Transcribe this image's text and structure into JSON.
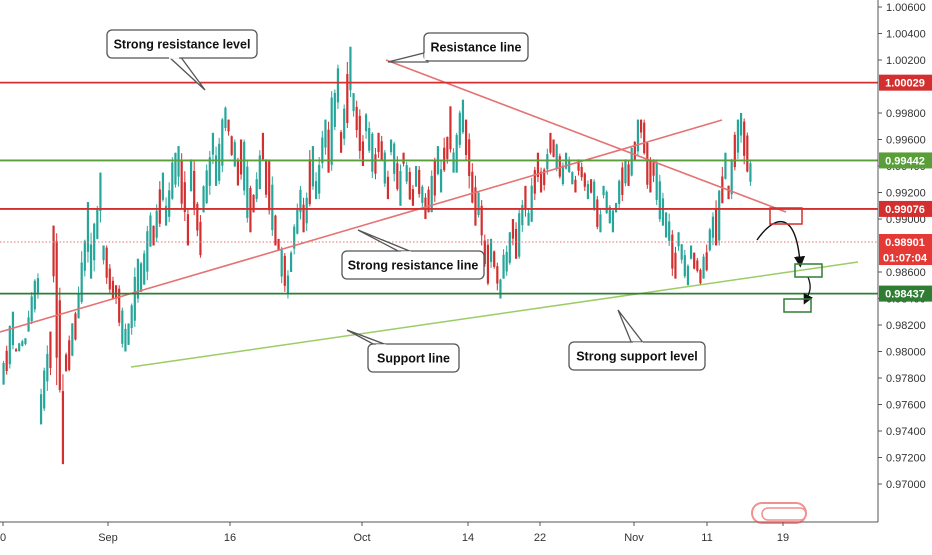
{
  "chart_data": {
    "type": "candlestick",
    "x_axis": {
      "tick_labels": [
        "0",
        "Sep",
        "16",
        "Oct",
        "14",
        "22",
        "Nov",
        "11",
        "19"
      ]
    },
    "y_axis": {
      "position": "right",
      "range": [
        0.969,
        1.0065
      ],
      "tick_labels": [
        "1.00600",
        "1.00400",
        "1.00200",
        "0.99800",
        "0.99600",
        "0.99400",
        "0.99200",
        "0.99000",
        "0.98600",
        "0.98400",
        "0.98200",
        "0.98000",
        "0.97800",
        "0.97600",
        "0.97400",
        "0.97200",
        "0.97000"
      ],
      "tick_values": [
        1.006,
        1.004,
        1.002,
        0.998,
        0.996,
        0.994,
        0.992,
        0.99,
        0.986,
        0.984,
        0.982,
        0.98,
        0.978,
        0.976,
        0.974,
        0.972,
        0.97
      ]
    },
    "horizontal_levels": [
      {
        "price": 1.00029,
        "label": "1.00029",
        "color": "#d32f2f"
      },
      {
        "price": 0.99442,
        "label": "0.99442",
        "color": "#5a9e3a"
      },
      {
        "price": 0.99076,
        "label": "0.99076",
        "color": "#d32f2f"
      },
      {
        "price": 0.98437,
        "label": "0.98437",
        "color": "#2e7d32"
      }
    ],
    "current_price": {
      "label": "0.98901",
      "countdown": "01:07:04",
      "color": "#e53935"
    },
    "annotations": {
      "strong_resistance_level": "Strong resistance level",
      "resistance_line": "Resistance line",
      "strong_resistance_line": "Strong resistance line",
      "support_line": "Support line",
      "strong_support_level": "Strong support level"
    },
    "price_path": [
      [
        0.983,
        0.9775,
        1
      ],
      [
        0.981,
        0.98,
        1
      ],
      [
        0.986,
        0.9815,
        1
      ],
      [
        0.9815,
        0.9745,
        1
      ],
      [
        0.9895,
        0.9715,
        -1
      ],
      [
        0.983,
        0.9785,
        1
      ],
      [
        0.9915,
        0.9825,
        1
      ],
      [
        0.9935,
        0.9855,
        1
      ],
      [
        0.988,
        0.984,
        -1
      ],
      [
        0.985,
        0.98,
        -1
      ],
      [
        0.987,
        0.9805,
        1
      ],
      [
        0.9905,
        0.9845,
        1
      ],
      [
        0.9935,
        0.988,
        1
      ],
      [
        0.995,
        0.9895,
        1
      ],
      [
        0.9955,
        0.988,
        -1
      ],
      [
        0.9945,
        0.987,
        -1
      ],
      [
        0.9965,
        0.9905,
        1
      ],
      [
        0.9985,
        0.9925,
        1
      ],
      [
        0.9975,
        0.9925,
        -1
      ],
      [
        0.996,
        0.989,
        -1
      ],
      [
        0.9965,
        0.9905,
        1
      ],
      [
        0.9945,
        0.988,
        -1
      ],
      [
        0.9885,
        0.984,
        -1
      ],
      [
        0.9925,
        0.986,
        1
      ],
      [
        0.9955,
        0.989,
        1
      ],
      [
        0.9975,
        0.9915,
        1
      ],
      [
        1.002,
        0.9935,
        1
      ],
      [
        1.003,
        0.995,
        1
      ],
      [
        0.9995,
        0.994,
        -1
      ],
      [
        0.998,
        0.993,
        -1
      ],
      [
        0.9965,
        0.9915,
        -1
      ],
      [
        0.996,
        0.991,
        -1
      ],
      [
        0.995,
        0.991,
        -1
      ],
      [
        0.994,
        0.99,
        -1
      ],
      [
        0.9955,
        0.9905,
        1
      ],
      [
        0.9985,
        0.992,
        1
      ],
      [
        0.999,
        0.9935,
        1
      ],
      [
        0.9975,
        0.9895,
        -1
      ],
      [
        0.992,
        0.985,
        -1
      ],
      [
        0.9885,
        0.984,
        -1
      ],
      [
        0.99,
        0.9855,
        1
      ],
      [
        0.9925,
        0.987,
        1
      ],
      [
        0.995,
        0.9895,
        1
      ],
      [
        0.9965,
        0.992,
        1
      ],
      [
        0.996,
        0.9925,
        -1
      ],
      [
        0.995,
        0.992,
        -1
      ],
      [
        0.9945,
        0.9915,
        -1
      ],
      [
        0.993,
        0.989,
        -1
      ],
      [
        0.9925,
        0.989,
        -1
      ],
      [
        0.9945,
        0.9905,
        1
      ],
      [
        0.9975,
        0.9925,
        1
      ],
      [
        0.9975,
        0.992,
        -1
      ],
      [
        0.9945,
        0.9895,
        -1
      ],
      [
        0.9905,
        0.9855,
        -1
      ],
      [
        0.989,
        0.985,
        -1
      ],
      [
        0.988,
        0.985,
        -1
      ],
      [
        0.9905,
        0.9855,
        1
      ],
      [
        0.995,
        0.988,
        1
      ],
      [
        0.9975,
        0.9915,
        1
      ],
      [
        0.998,
        0.9925,
        -1
      ]
    ],
    "projection": {
      "path_color": "#111111",
      "resistance_box_color": "#d32f2f",
      "target_box_color": "#2e7d32"
    }
  }
}
